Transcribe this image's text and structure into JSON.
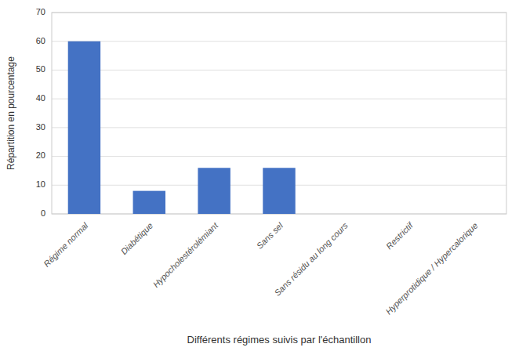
{
  "chart_data": {
    "type": "bar",
    "categories": [
      "Régime normal",
      "Diabétique",
      "Hypocholestérolémiant",
      "Sans sel",
      "Sans résidu au long cours",
      "Restrictif",
      "Hyperprotidique / Hypercalorique"
    ],
    "values": [
      60,
      8,
      16,
      16,
      0,
      0,
      0
    ],
    "color": "#4472C4",
    "xlabel": "Différents régimes suivis par l'échantillon",
    "ylabel": "Répartition en pourcentage",
    "ylim": [
      0,
      70
    ],
    "yticks": [
      0,
      10,
      20,
      30,
      40,
      50,
      60,
      70
    ],
    "grid": true
  }
}
